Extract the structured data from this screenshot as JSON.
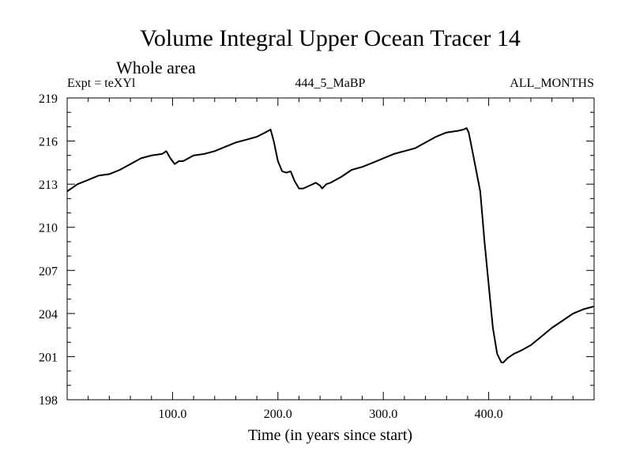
{
  "chart_data": {
    "type": "line",
    "title": "Volume Integral Upper Ocean Tracer 14",
    "subtitle": "Whole area",
    "annotations": {
      "left": "Expt = teXYl",
      "center": "444_5_MaBP",
      "right": "ALL_MONTHS"
    },
    "xlabel": "Time (in years since start)",
    "ylabel": "",
    "xlim": [
      0,
      500
    ],
    "ylim": [
      198,
      219
    ],
    "xticks": [
      100,
      200,
      300,
      400
    ],
    "xtick_labels": [
      "100.0",
      "200.0",
      "300.0",
      "400.0"
    ],
    "yticks": [
      198,
      201,
      204,
      207,
      210,
      213,
      216,
      219
    ],
    "ytick_labels": [
      "198",
      "201",
      "204",
      "207",
      "210",
      "213",
      "216",
      "219"
    ],
    "grid": false,
    "series": [
      {
        "color": "#000000",
        "x": [
          0,
          10,
          20,
          30,
          40,
          50,
          60,
          70,
          80,
          90,
          94,
          98,
          102,
          106,
          110,
          120,
          130,
          140,
          150,
          160,
          170,
          180,
          188,
          193,
          196,
          200,
          204,
          208,
          212,
          216,
          220,
          224,
          230,
          236,
          240,
          242,
          246,
          250,
          260,
          270,
          280,
          290,
          300,
          310,
          320,
          330,
          340,
          350,
          360,
          370,
          376,
          379,
          381,
          384,
          388,
          392,
          396,
          400,
          404,
          408,
          412,
          414,
          418,
          424,
          430,
          440,
          450,
          460,
          470,
          480,
          490,
          500
        ],
        "y": [
          212.5,
          213.0,
          213.3,
          213.6,
          213.7,
          214.0,
          214.4,
          214.8,
          215.0,
          215.1,
          215.3,
          214.8,
          214.4,
          214.6,
          214.6,
          215.0,
          215.1,
          215.3,
          215.6,
          215.9,
          216.1,
          216.3,
          216.6,
          216.8,
          216.0,
          214.6,
          213.9,
          213.8,
          213.9,
          213.2,
          212.7,
          212.7,
          212.9,
          213.1,
          212.9,
          212.7,
          213.0,
          213.1,
          213.5,
          214.0,
          214.2,
          214.5,
          214.8,
          215.1,
          215.3,
          215.5,
          215.9,
          216.3,
          216.6,
          216.7,
          216.8,
          216.9,
          216.6,
          215.5,
          214.0,
          212.5,
          209.0,
          206.0,
          203.0,
          201.2,
          200.6,
          200.6,
          200.9,
          201.2,
          201.4,
          201.8,
          202.4,
          203.0,
          203.5,
          204.0,
          204.3,
          204.5
        ]
      }
    ]
  }
}
